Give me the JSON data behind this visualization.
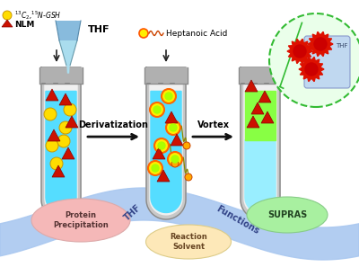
{
  "bg_color": "#ffffff",
  "liquid1_color": "#55ddff",
  "liquid2_color": "#55ddff",
  "liquid3_top_color": "#88ff44",
  "liquid3_bottom_color": "#99eeff",
  "arrow_color": "#111111",
  "label_derivatization": "Derivatization",
  "label_vortex": "Vortex",
  "legend_gsh_label": "$^{13}$C$_2$,$^{15}$N-GSH",
  "legend_nlm_label": "NLM",
  "thf_label": "THF",
  "heptanoic_label": "Heptanoic Acid",
  "wave_color": "#aac8f0",
  "ellipse1_color": "#f5b8b8",
  "ellipse1_label": "Protein\nPrecipitation",
  "ellipse2_color": "#fde8b8",
  "ellipse2_label": "Reaction\nSolvent",
  "ellipse3_color": "#a8f0a0",
  "ellipse3_label": "SUPRAS",
  "thf_wave_label": "THF",
  "functions_label": "Functions",
  "inset_text": "THF"
}
